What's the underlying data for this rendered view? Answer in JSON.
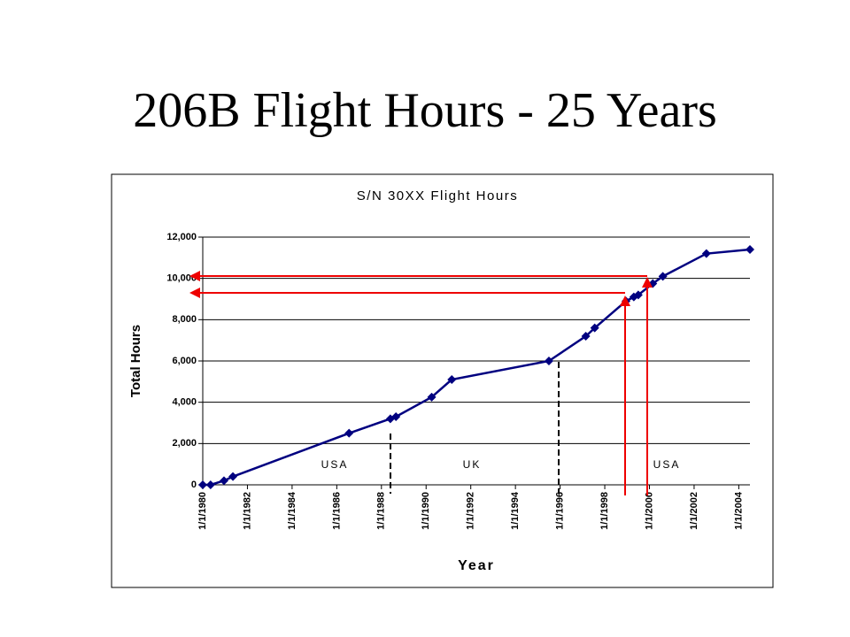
{
  "slide_title": "206B Flight Hours - 25 Years",
  "chart_data": {
    "type": "line",
    "title": "S/N 30XX Flight Hours",
    "x_label": "Year",
    "y_label": "Total Hours",
    "x": [
      1980.0,
      1980.35,
      1980.95,
      1981.35,
      1986.55,
      1988.4,
      1988.65,
      1990.25,
      1991.15,
      1995.5,
      1997.15,
      1997.55,
      1998.95,
      1999.3,
      1999.5,
      2000.15,
      2000.6,
      2002.55,
      2004.5
    ],
    "series": [
      {
        "name": "S/N 30XX",
        "color": "#000080",
        "values": [
          0,
          0,
          200,
          400,
          2500,
          3200,
          3300,
          4250,
          5100,
          6000,
          7200,
          7600,
          8900,
          9100,
          9200,
          9750,
          10100,
          11200,
          11400
        ]
      }
    ],
    "xlim": [
      1980,
      2004.5
    ],
    "xticks": [
      {
        "value": 1980,
        "label": "1/1/1980"
      },
      {
        "value": 1982,
        "label": "1/1/1982"
      },
      {
        "value": 1984,
        "label": "1/1/1984"
      },
      {
        "value": 1986,
        "label": "1/1/1986"
      },
      {
        "value": 1988,
        "label": "1/1/1988"
      },
      {
        "value": 1990,
        "label": "1/1/1990"
      },
      {
        "value": 1992,
        "label": "1/1/1992"
      },
      {
        "value": 1994,
        "label": "1/1/1994"
      },
      {
        "value": 1996,
        "label": "1/1/1996"
      },
      {
        "value": 1998,
        "label": "1/1/1998"
      },
      {
        "value": 2000,
        "label": "1/1/2000"
      },
      {
        "value": 2002,
        "label": "1/1/2002"
      },
      {
        "value": 2004,
        "label": "1/1/2004"
      }
    ],
    "ylim": [
      0,
      12000
    ],
    "yticks": [
      0,
      {
        "value": 2000,
        "label": "2,000"
      },
      {
        "value": 4000,
        "label": "4,000"
      },
      {
        "value": 6000,
        "label": "6,000"
      },
      {
        "value": 8000,
        "label": "8,000"
      },
      {
        "value": 10000,
        "label": "10,000"
      },
      {
        "value": 12000,
        "label": "12,000"
      }
    ],
    "grid": true,
    "annotations": [
      "USA",
      "UK",
      "USA"
    ]
  }
}
